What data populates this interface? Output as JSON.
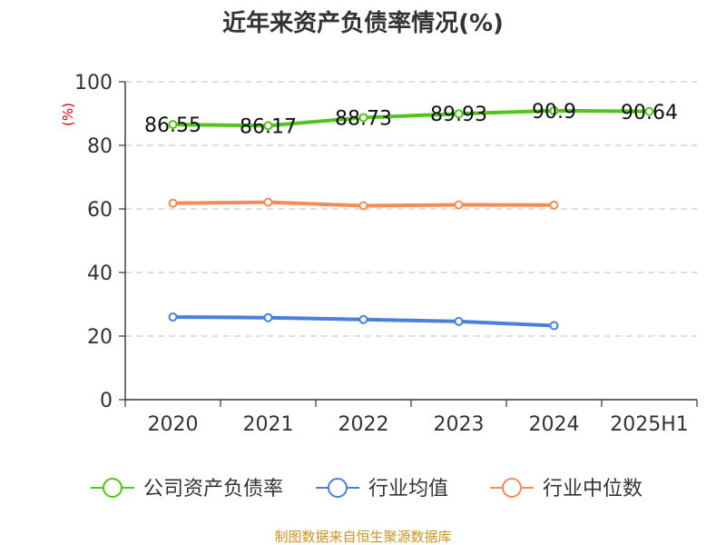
{
  "chart_data": {
    "type": "line",
    "title": "近年来资产负债率情况(%)",
    "y_unit": "(%)",
    "categories": [
      "2020",
      "2021",
      "2022",
      "2023",
      "2024",
      "2025H1"
    ],
    "ylim": [
      0,
      100
    ],
    "yticks": [
      "0",
      "20",
      "40",
      "60",
      "80",
      "100"
    ],
    "grid": true,
    "legend_position": "bottom",
    "series": [
      {
        "name": "公司资产负债率",
        "color": "#52c41a",
        "values": [
          86.55,
          86.17,
          88.73,
          89.93,
          90.9,
          90.64
        ],
        "labels": [
          "86.55",
          "86.17",
          "88.73",
          "89.93",
          "90.9",
          "90.64"
        ]
      },
      {
        "name": "行业均值",
        "color": "#4a7fdc",
        "values": [
          26.0,
          25.8,
          25.2,
          24.6,
          23.3,
          null
        ],
        "labels": []
      },
      {
        "name": "行业中位数",
        "color": "#f28c55",
        "values": [
          61.8,
          62.1,
          61.0,
          61.3,
          61.2,
          null
        ],
        "labels": []
      }
    ]
  },
  "source": "制图数据来自恒生聚源数据库"
}
